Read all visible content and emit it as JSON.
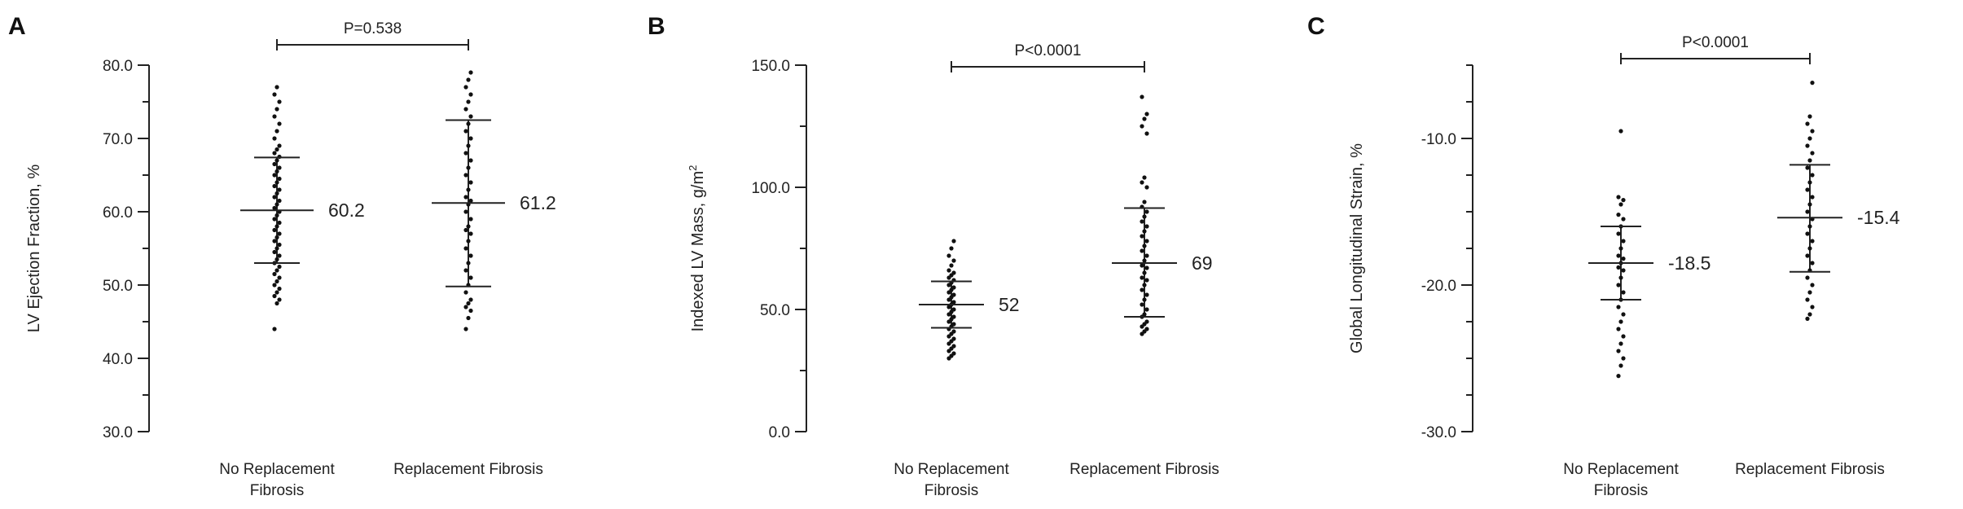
{
  "chart_data": [
    {
      "panel": "A",
      "type": "scatter",
      "ylabel": "LV Ejection Fraction, %",
      "ylabel_sup": "",
      "ylim": [
        30,
        80
      ],
      "yticks": [
        30,
        40,
        50,
        60,
        70,
        80
      ],
      "ytick_labels": [
        "30.0",
        "40.0",
        "50.0",
        "60.0",
        "70.0",
        "80.0"
      ],
      "categories": [
        {
          "label_lines": [
            "No Replacement",
            "Fibrosis"
          ]
        },
        {
          "label_lines": [
            "Replacement Fibrosis"
          ]
        }
      ],
      "series": [
        {
          "mean": 60.2,
          "mean_label": "60.2",
          "sd_low": 53.0,
          "sd_high": 67.4,
          "points": [
            44,
            47.5,
            48,
            48.5,
            49,
            49.5,
            50,
            50.5,
            51,
            51.5,
            52,
            52.5,
            53,
            53.5,
            54,
            54.5,
            55,
            55.5,
            56,
            56.5,
            57,
            57.5,
            58,
            58.5,
            59,
            59.5,
            60,
            60.5,
            61,
            61.5,
            62,
            62.5,
            63,
            63.5,
            64,
            64.5,
            65,
            65.5,
            66,
            66.5,
            67,
            67.5,
            68,
            68.5,
            69,
            70,
            71,
            72,
            73,
            74,
            75,
            76,
            77
          ]
        },
        {
          "mean": 61.2,
          "mean_label": "61.2",
          "sd_low": 49.8,
          "sd_high": 72.5,
          "points": [
            44,
            45.5,
            46.5,
            47,
            47.5,
            48,
            49,
            50,
            51,
            52,
            53,
            54,
            55,
            56,
            57,
            57.5,
            58,
            59,
            60,
            61,
            61.5,
            62,
            63,
            64,
            65,
            66,
            67,
            68,
            69,
            70,
            71,
            72,
            73,
            74,
            75,
            76,
            77,
            78,
            79
          ]
        }
      ],
      "comparison": "P=0.538"
    },
    {
      "panel": "B",
      "type": "scatter",
      "ylabel": "Indexed LV Mass, g/m",
      "ylabel_sup": "2",
      "ylim": [
        0,
        150
      ],
      "yticks": [
        0,
        50,
        100,
        150
      ],
      "ytick_labels": [
        "0.0",
        "50.0",
        "100.0",
        "150.0"
      ],
      "categories": [
        {
          "label_lines": [
            "No Replacement",
            "Fibrosis"
          ]
        },
        {
          "label_lines": [
            "Replacement Fibrosis"
          ]
        }
      ],
      "series": [
        {
          "mean": 52,
          "mean_label": "52",
          "sd_low": 42.5,
          "sd_high": 61.5,
          "points": [
            30,
            31,
            32,
            33,
            34,
            35,
            36,
            37,
            38,
            39,
            40,
            41,
            42,
            43,
            44,
            45,
            46,
            47,
            48,
            49,
            50,
            51,
            52,
            53,
            54,
            55,
            56,
            57,
            58,
            59,
            60,
            61,
            62,
            63,
            64,
            65,
            66,
            68,
            70,
            72,
            75,
            78
          ]
        },
        {
          "mean": 69,
          "mean_label": "69",
          "sd_low": 47,
          "sd_high": 91.5,
          "points": [
            40,
            41,
            42,
            43,
            44,
            45,
            47,
            48,
            50,
            52,
            54,
            56,
            58,
            60,
            62,
            63,
            65,
            67,
            68,
            70,
            72,
            74,
            76,
            78,
            80,
            82,
            84,
            86,
            88,
            90,
            92,
            94,
            100,
            102,
            104,
            122,
            125,
            128,
            130,
            137
          ]
        }
      ],
      "comparison": "P<0.0001"
    },
    {
      "panel": "C",
      "type": "scatter",
      "ylabel": "Global Longitudinal Strain, %",
      "ylabel_sup": "",
      "ylim": [
        -30,
        -5
      ],
      "yticks": [
        -30,
        -20,
        -10
      ],
      "ytick_labels": [
        "-30.0",
        "-20.0",
        "-10.0"
      ],
      "categories": [
        {
          "label_lines": [
            "No Replacement",
            "Fibrosis"
          ]
        },
        {
          "label_lines": [
            "Replacement Fibrosis"
          ]
        }
      ],
      "series": [
        {
          "mean": -18.5,
          "mean_label": "-18.5",
          "sd_low": -21.0,
          "sd_high": -16.0,
          "points": [
            -26.2,
            -25.5,
            -25.0,
            -24.5,
            -24.0,
            -23.5,
            -23.0,
            -22.5,
            -22.0,
            -21.5,
            -21.0,
            -20.5,
            -20.0,
            -19.5,
            -19.0,
            -18.8,
            -18.5,
            -18.2,
            -18.0,
            -17.5,
            -17.0,
            -16.5,
            -16.0,
            -15.5,
            -15.2,
            -14.5,
            -14.2,
            -14.0,
            -9.5
          ]
        },
        {
          "mean": -15.4,
          "mean_label": "-15.4",
          "sd_low": -19.1,
          "sd_high": -11.8,
          "points": [
            -22.3,
            -22.0,
            -21.5,
            -21.0,
            -20.5,
            -20.0,
            -19.5,
            -19.0,
            -18.5,
            -18.0,
            -17.5,
            -17.0,
            -16.5,
            -16.0,
            -15.5,
            -15.0,
            -14.5,
            -14.0,
            -13.5,
            -13.0,
            -12.5,
            -12.0,
            -11.5,
            -11.0,
            -10.5,
            -10.0,
            -9.5,
            -9.0,
            -8.5,
            -6.2
          ]
        }
      ],
      "comparison": "P<0.0001"
    }
  ]
}
